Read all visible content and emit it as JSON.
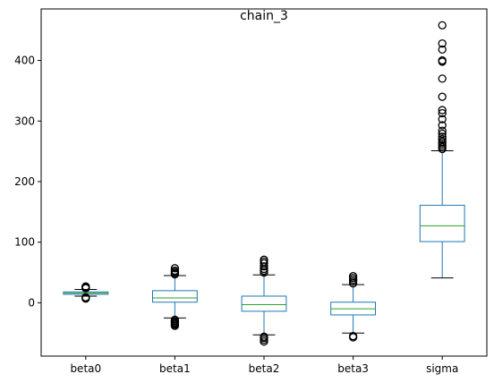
{
  "chart_data": {
    "type": "box",
    "title": "chain_3",
    "xlabel": "",
    "ylabel": "",
    "ylim": [
      -88,
      485
    ],
    "yticks": [
      0,
      100,
      200,
      300,
      400
    ],
    "grid": false,
    "colors": {
      "box": "#1f77b4",
      "median": "#2ca02c",
      "whisker_cap": "#000000",
      "flier": "#000000"
    },
    "categories": [
      "beta0",
      "beta1",
      "beta2",
      "beta3",
      "sigma"
    ],
    "boxes": [
      {
        "name": "beta0",
        "whislo": 11,
        "q1": 14,
        "med": 16,
        "q3": 18,
        "whishi": 22,
        "fliers": [
          7,
          8,
          9,
          24,
          25,
          26,
          27
        ]
      },
      {
        "name": "beta1",
        "whislo": -25,
        "q1": 1,
        "med": 8,
        "q3": 20,
        "whishi": 45,
        "fliers": [
          -28,
          -30,
          -32,
          -34,
          -36,
          -38,
          47,
          49,
          51,
          53,
          57
        ]
      },
      {
        "name": "beta2",
        "whislo": -53,
        "q1": -14,
        "med": -3,
        "q3": 11,
        "whishi": 46,
        "fliers": [
          -56,
          -58,
          -61,
          -64,
          50,
          53,
          56,
          60,
          65,
          68,
          71
        ]
      },
      {
        "name": "beta3",
        "whislo": -50,
        "q1": -20,
        "med": -10,
        "q3": 1,
        "whishi": 30,
        "fliers": [
          -55,
          -57,
          32,
          35,
          38,
          41,
          44
        ]
      },
      {
        "name": "sigma",
        "whislo": 41,
        "q1": 101,
        "med": 127,
        "q3": 161,
        "whishi": 251,
        "fliers": [
          254,
          257,
          260,
          263,
          266,
          270,
          274,
          279,
          284,
          293,
          303,
          313,
          318,
          340,
          370,
          398,
          400,
          418,
          428,
          458
        ]
      }
    ]
  }
}
